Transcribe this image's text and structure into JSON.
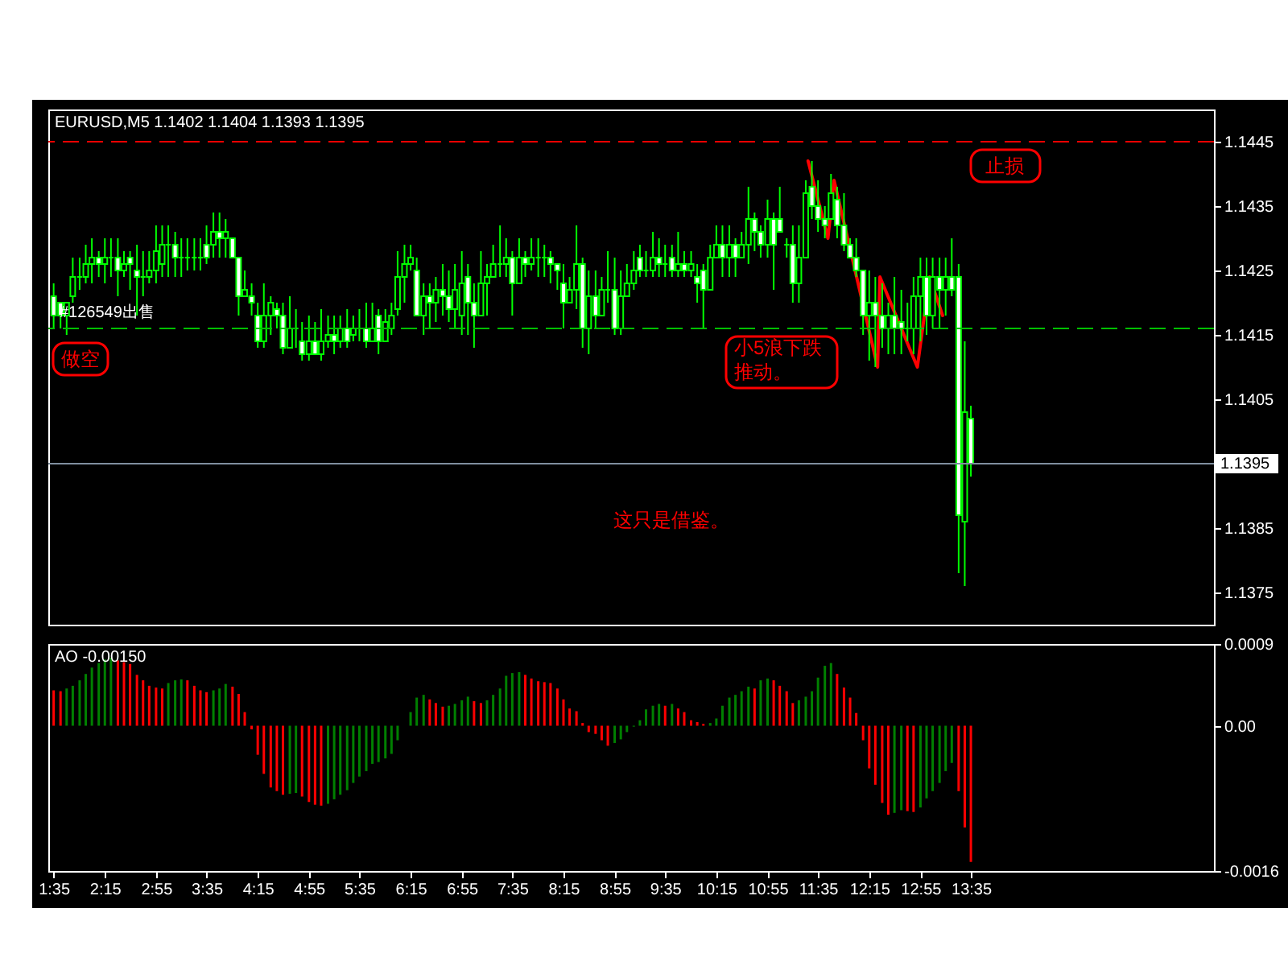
{
  "chart_data": [
    {
      "type": "candlestick",
      "title": "EURUSD,M5 1.1402 1.1404 1.1393 1.1395",
      "color": "#00ff00",
      "x": [
        1.58,
        1.67,
        1.75,
        1.83,
        1.92,
        2.0,
        2.08,
        2.17,
        2.25,
        2.33,
        2.42,
        2.5,
        2.58,
        2.67,
        2.75,
        2.83,
        2.92,
        3.0,
        3.08,
        3.17,
        3.25,
        3.33,
        3.42,
        3.5,
        3.58,
        3.67,
        3.75,
        3.83,
        3.92,
        4.0,
        4.08,
        4.17,
        4.25,
        4.33,
        4.42,
        4.5,
        4.58,
        4.67,
        4.75,
        4.83,
        4.92,
        5.0,
        5.08,
        5.17,
        5.25,
        5.33,
        5.42,
        5.5,
        5.58,
        5.67,
        5.75,
        5.83,
        5.92,
        6.0,
        6.08,
        6.17,
        6.25,
        6.33,
        6.42,
        6.5,
        6.58,
        6.67,
        6.75,
        6.83,
        6.92,
        7.0,
        7.08,
        7.17,
        7.25,
        7.33,
        7.42,
        7.5,
        7.58,
        7.67,
        7.75,
        7.83,
        7.92,
        8.0,
        8.08,
        8.17,
        8.25,
        8.33,
        8.42,
        8.5,
        8.58,
        8.67,
        8.75,
        8.83,
        8.92,
        9.0,
        9.08,
        9.17,
        9.25,
        9.33,
        9.42,
        9.5,
        9.58,
        9.67,
        9.75,
        9.83,
        9.92,
        10.0,
        10.08,
        10.17,
        10.25,
        10.33,
        10.42,
        10.5,
        10.58,
        10.67,
        10.75,
        10.83,
        10.92,
        11.0,
        11.08,
        11.17,
        11.25,
        11.33,
        11.42,
        11.5,
        11.58,
        11.67,
        11.75,
        11.83,
        11.92,
        12.0,
        12.08,
        12.17,
        12.25,
        12.33,
        12.42,
        12.5,
        12.58,
        12.67,
        12.75,
        12.83,
        12.92,
        13.0,
        13.08,
        13.17,
        13.25,
        13.33,
        13.42,
        13.5,
        13.58
      ],
      "ohlc": [
        [
          1.1421,
          1.1423,
          1.1416,
          1.1418
        ],
        [
          1.142,
          1.142,
          1.1416,
          1.1418
        ],
        [
          1.1418,
          1.142,
          1.1415,
          1.142
        ],
        [
          1.1421,
          1.1427,
          1.142,
          1.1424
        ],
        [
          1.1424,
          1.1427,
          1.1422,
          1.1424
        ],
        [
          1.1424,
          1.1429,
          1.1423,
          1.1426
        ],
        [
          1.1426,
          1.143,
          1.1423,
          1.1427
        ],
        [
          1.1427,
          1.1428,
          1.1424,
          1.1426
        ],
        [
          1.1426,
          1.143,
          1.1423,
          1.1427
        ],
        [
          1.1427,
          1.143,
          1.1424,
          1.1427
        ],
        [
          1.1427,
          1.143,
          1.1421,
          1.1425
        ],
        [
          1.1425,
          1.1428,
          1.1424,
          1.1426
        ],
        [
          1.1427,
          1.1428,
          1.1422,
          1.1426
        ],
        [
          1.1425,
          1.1429,
          1.1418,
          1.1424
        ],
        [
          1.1424,
          1.1428,
          1.1421,
          1.1424
        ],
        [
          1.1424,
          1.1428,
          1.1423,
          1.1425
        ],
        [
          1.1425,
          1.1432,
          1.1423,
          1.1428
        ],
        [
          1.1426,
          1.1432,
          1.1424,
          1.1429
        ],
        [
          1.1429,
          1.1432,
          1.1424,
          1.1429
        ],
        [
          1.1429,
          1.1431,
          1.1424,
          1.1427
        ],
        [
          1.1427,
          1.143,
          1.1424,
          1.1427
        ],
        [
          1.1427,
          1.143,
          1.1425,
          1.1427
        ],
        [
          1.1427,
          1.143,
          1.1425,
          1.1427
        ],
        [
          1.1427,
          1.143,
          1.1425,
          1.1427
        ],
        [
          1.1429,
          1.1432,
          1.1426,
          1.1427
        ],
        [
          1.1429,
          1.1434,
          1.1427,
          1.1431
        ],
        [
          1.1431,
          1.1434,
          1.1427,
          1.143
        ],
        [
          1.143,
          1.1433,
          1.1427,
          1.1431
        ],
        [
          1.143,
          1.143,
          1.1427,
          1.1427
        ],
        [
          1.1427,
          1.1427,
          1.1418,
          1.1421
        ],
        [
          1.1421,
          1.1425,
          1.1421,
          1.1422
        ],
        [
          1.1421,
          1.1423,
          1.1418,
          1.142
        ],
        [
          1.1418,
          1.142,
          1.1413,
          1.1414
        ],
        [
          1.1414,
          1.1423,
          1.1413,
          1.1418
        ],
        [
          1.1418,
          1.1421,
          1.1415,
          1.142
        ],
        [
          1.1419,
          1.142,
          1.1416,
          1.1418
        ],
        [
          1.1418,
          1.142,
          1.1412,
          1.1413
        ],
        [
          1.1413,
          1.1421,
          1.1413,
          1.1416
        ],
        [
          1.1416,
          1.1419,
          1.1413,
          1.1416
        ],
        [
          1.1414,
          1.1417,
          1.1411,
          1.1412
        ],
        [
          1.1412,
          1.1418,
          1.1411,
          1.1414
        ],
        [
          1.1414,
          1.1417,
          1.1412,
          1.1412
        ],
        [
          1.1412,
          1.1419,
          1.1411,
          1.1414
        ],
        [
          1.1414,
          1.1418,
          1.1413,
          1.1415
        ],
        [
          1.1415,
          1.1418,
          1.1412,
          1.1414
        ],
        [
          1.1414,
          1.1418,
          1.1413,
          1.1416
        ],
        [
          1.1416,
          1.1419,
          1.1413,
          1.1414
        ],
        [
          1.1415,
          1.1418,
          1.1414,
          1.1416
        ],
        [
          1.1416,
          1.1419,
          1.1414,
          1.1416
        ],
        [
          1.1416,
          1.142,
          1.1413,
          1.1414
        ],
        [
          1.1414,
          1.142,
          1.1414,
          1.1416
        ],
        [
          1.1418,
          1.1419,
          1.1412,
          1.1414
        ],
        [
          1.1414,
          1.1419,
          1.1414,
          1.1417
        ],
        [
          1.1416,
          1.142,
          1.1415,
          1.1418
        ],
        [
          1.1419,
          1.1428,
          1.1418,
          1.1424
        ],
        [
          1.1424,
          1.1429,
          1.142,
          1.1426
        ],
        [
          1.1426,
          1.1429,
          1.1425,
          1.1427
        ],
        [
          1.1425,
          1.1427,
          1.1418,
          1.1418
        ],
        [
          1.1418,
          1.1423,
          1.1415,
          1.1421
        ],
        [
          1.1421,
          1.1423,
          1.1416,
          1.142
        ],
        [
          1.142,
          1.1424,
          1.1417,
          1.1422
        ],
        [
          1.1422,
          1.1426,
          1.1418,
          1.1421
        ],
        [
          1.1421,
          1.1425,
          1.1417,
          1.1419
        ],
        [
          1.1419,
          1.1426,
          1.1416,
          1.1422
        ],
        [
          1.1418,
          1.1428,
          1.1415,
          1.1423
        ],
        [
          1.1424,
          1.1426,
          1.1415,
          1.142
        ],
        [
          1.142,
          1.1423,
          1.1413,
          1.1418
        ],
        [
          1.1418,
          1.1428,
          1.1418,
          1.1423
        ],
        [
          1.1423,
          1.1426,
          1.1418,
          1.1424
        ],
        [
          1.1424,
          1.1429,
          1.1424,
          1.1426
        ],
        [
          1.1426,
          1.1432,
          1.1424,
          1.1426
        ],
        [
          1.1426,
          1.143,
          1.1424,
          1.1427
        ],
        [
          1.1427,
          1.1428,
          1.1418,
          1.1423
        ],
        [
          1.1423,
          1.143,
          1.1423,
          1.1427
        ],
        [
          1.1427,
          1.1428,
          1.1424,
          1.1426
        ],
        [
          1.1426,
          1.143,
          1.1425,
          1.1427
        ],
        [
          1.1427,
          1.143,
          1.1424,
          1.1427
        ],
        [
          1.1427,
          1.1429,
          1.1424,
          1.1427
        ],
        [
          1.1427,
          1.1428,
          1.1423,
          1.1426
        ],
        [
          1.1426,
          1.1426,
          1.1422,
          1.1425
        ],
        [
          1.1423,
          1.1426,
          1.1416,
          1.142
        ],
        [
          1.142,
          1.1424,
          1.142,
          1.1422
        ],
        [
          1.1422,
          1.1432,
          1.1419,
          1.1426
        ],
        [
          1.1426,
          1.1427,
          1.1413,
          1.1416
        ],
        [
          1.1416,
          1.1425,
          1.1412,
          1.1421
        ],
        [
          1.1421,
          1.1425,
          1.1416,
          1.1418
        ],
        [
          1.1418,
          1.1424,
          1.1418,
          1.1422
        ],
        [
          1.1422,
          1.1428,
          1.142,
          1.1422
        ],
        [
          1.1422,
          1.1427,
          1.1415,
          1.1416
        ],
        [
          1.1416,
          1.1425,
          1.1415,
          1.1421
        ],
        [
          1.1421,
          1.1426,
          1.1421,
          1.1423
        ],
        [
          1.1423,
          1.1428,
          1.1422,
          1.1425
        ],
        [
          1.1427,
          1.1429,
          1.1424,
          1.1425
        ],
        [
          1.1425,
          1.1428,
          1.1424,
          1.1425
        ],
        [
          1.1425,
          1.1431,
          1.1424,
          1.1427
        ],
        [
          1.1427,
          1.143,
          1.1424,
          1.1426
        ],
        [
          1.1426,
          1.1429,
          1.1424,
          1.1426
        ],
        [
          1.1427,
          1.1429,
          1.1424,
          1.1425
        ],
        [
          1.1425,
          1.1431,
          1.1424,
          1.1426
        ],
        [
          1.1426,
          1.1428,
          1.1424,
          1.1425
        ],
        [
          1.1425,
          1.1428,
          1.1424,
          1.1426
        ],
        [
          1.1424,
          1.1426,
          1.142,
          1.1423
        ],
        [
          1.1425,
          1.1426,
          1.1416,
          1.1422
        ],
        [
          1.1422,
          1.1429,
          1.1422,
          1.1427
        ],
        [
          1.1427,
          1.1432,
          1.1427,
          1.1429
        ],
        [
          1.1429,
          1.1432,
          1.1424,
          1.1427
        ],
        [
          1.1427,
          1.1432,
          1.1424,
          1.1429
        ],
        [
          1.1429,
          1.143,
          1.1424,
          1.1427
        ],
        [
          1.1427,
          1.1431,
          1.1427,
          1.1429
        ],
        [
          1.1429,
          1.1438,
          1.1426,
          1.1433
        ],
        [
          1.1433,
          1.1434,
          1.1428,
          1.1431
        ],
        [
          1.1431,
          1.1432,
          1.1427,
          1.1429
        ],
        [
          1.1429,
          1.1436,
          1.1427,
          1.1433
        ],
        [
          1.1433,
          1.1434,
          1.1422,
          1.1429
        ],
        [
          1.1433,
          1.1438,
          1.1431,
          1.1431
        ],
        [
          1.1429,
          1.143,
          1.1427,
          1.1429
        ],
        [
          1.1429,
          1.1432,
          1.142,
          1.1423
        ],
        [
          1.1423,
          1.1432,
          1.142,
          1.1427
        ],
        [
          1.1427,
          1.1439,
          1.1427,
          1.1437
        ],
        [
          1.1438,
          1.1442,
          1.1433,
          1.1435
        ],
        [
          1.1435,
          1.1439,
          1.1431,
          1.1433
        ],
        [
          1.1433,
          1.1435,
          1.143,
          1.1432
        ],
        [
          1.1433,
          1.144,
          1.1433,
          1.1437
        ],
        [
          1.1436,
          1.1438,
          1.143,
          1.1432
        ],
        [
          1.1432,
          1.1437,
          1.1428,
          1.1429
        ],
        [
          1.1429,
          1.143,
          1.1427,
          1.1427
        ],
        [
          1.1427,
          1.143,
          1.1424,
          1.1425
        ],
        [
          1.1425,
          1.1425,
          1.1415,
          1.1418
        ],
        [
          1.1418,
          1.1425,
          1.1411,
          1.142
        ],
        [
          1.142,
          1.1424,
          1.141,
          1.1418
        ],
        [
          1.1418,
          1.1423,
          1.1413,
          1.1416
        ],
        [
          1.1416,
          1.142,
          1.1412,
          1.1418
        ],
        [
          1.1418,
          1.1424,
          1.1412,
          1.1416
        ],
        [
          1.1417,
          1.1422,
          1.1412,
          1.1416
        ],
        [
          1.1416,
          1.142,
          1.1414,
          1.1416
        ],
        [
          1.1416,
          1.1424,
          1.1412,
          1.1421
        ],
        [
          1.1421,
          1.1427,
          1.1414,
          1.1424
        ],
        [
          1.1424,
          1.1427,
          1.1415,
          1.1418
        ],
        [
          1.1418,
          1.1427,
          1.1416,
          1.1424
        ],
        [
          1.1424,
          1.1427,
          1.1416,
          1.1422
        ],
        [
          1.1422,
          1.1427,
          1.1418,
          1.1424
        ],
        [
          1.1424,
          1.143,
          1.1421,
          1.1422
        ],
        [
          1.1424,
          1.1426,
          1.1378,
          1.1387
        ],
        [
          1.1386,
          1.1414,
          1.1376,
          1.1403
        ],
        [
          1.1402,
          1.1404,
          1.1393,
          1.1395
        ]
      ],
      "series": [
        {
          "type": "line",
          "color": "#ff0000",
          "x": [
            11.45,
            11.71,
            11.79,
            12.36,
            12.39,
            12.88,
            13.04,
            13.21
          ],
          "values": [
            1.1442,
            1.143,
            1.1439,
            1.141,
            1.1424,
            1.141,
            1.1424,
            1.1418
          ]
        }
      ],
      "ref_lines": [
        {
          "axis": "y",
          "value": 1.1445,
          "label": "止损",
          "color": "#ff0000",
          "line_style": "dashed"
        },
        {
          "axis": "y",
          "value": 1.1416,
          "label": "#126549出售",
          "color": "#00c000",
          "line_style": "dashed"
        },
        {
          "axis": "y",
          "value": 1.1395,
          "label": "1.1395",
          "color": "#7f8f9f",
          "line_style": "solid"
        }
      ],
      "annotations": [
        "做空",
        "小5浪下跌推动。",
        "这只是借鉴。"
      ],
      "xlim": [
        1.51,
        16.76
      ],
      "ylim": [
        1.137,
        1.145
      ],
      "yticks": [
        1.1375,
        1.1385,
        1.1405,
        1.1415,
        1.1425,
        1.1435,
        1.1445
      ],
      "tick_labels": "y"
    },
    {
      "type": "bar",
      "title": "AO -0.00150",
      "x": [
        1.58,
        1.67,
        1.75,
        1.83,
        1.92,
        2.0,
        2.08,
        2.17,
        2.25,
        2.33,
        2.42,
        2.5,
        2.58,
        2.67,
        2.75,
        2.83,
        2.92,
        3.0,
        3.08,
        3.17,
        3.25,
        3.33,
        3.42,
        3.5,
        3.58,
        3.67,
        3.75,
        3.83,
        3.92,
        4.0,
        4.08,
        4.17,
        4.25,
        4.33,
        4.42,
        4.5,
        4.58,
        4.67,
        4.75,
        4.83,
        4.92,
        5.0,
        5.08,
        5.17,
        5.25,
        5.33,
        5.42,
        5.5,
        5.58,
        5.67,
        5.75,
        5.83,
        5.92,
        6.0,
        6.08,
        6.17,
        6.25,
        6.33,
        6.42,
        6.5,
        6.58,
        6.67,
        6.75,
        6.83,
        6.92,
        7.0,
        7.08,
        7.17,
        7.25,
        7.33,
        7.42,
        7.5,
        7.58,
        7.67,
        7.75,
        7.83,
        7.92,
        8.0,
        8.08,
        8.17,
        8.25,
        8.33,
        8.42,
        8.5,
        8.58,
        8.67,
        8.75,
        8.83,
        8.92,
        9.0,
        9.08,
        9.17,
        9.25,
        9.33,
        9.42,
        9.5,
        9.58,
        9.67,
        9.75,
        9.83,
        9.92,
        10.0,
        10.08,
        10.17,
        10.25,
        10.33,
        10.42,
        10.5,
        10.58,
        10.67,
        10.75,
        10.83,
        10.92,
        11.0,
        11.08,
        11.17,
        11.25,
        11.33,
        11.42,
        11.5,
        11.58,
        11.67,
        11.75,
        11.83,
        11.92,
        12.0,
        12.08,
        12.17,
        12.25,
        12.33,
        12.42,
        12.5,
        12.58,
        12.67,
        12.75,
        12.83,
        12.92,
        13.0,
        13.08,
        13.17,
        13.25,
        13.33,
        13.42,
        13.5,
        13.58
      ],
      "values": [
        0.00039,
        0.00038,
        0.00041,
        0.00044,
        0.0005,
        0.00057,
        0.00064,
        0.00069,
        0.00073,
        0.00075,
        0.00072,
        0.0007,
        0.00068,
        0.00056,
        0.0005,
        0.00044,
        0.00042,
        0.00041,
        0.00047,
        0.0005,
        0.00051,
        0.0005,
        0.00044,
        0.00039,
        0.00037,
        0.00039,
        0.00041,
        0.00046,
        0.00043,
        0.00035,
        0.00015,
        -4e-05,
        -0.00032,
        -0.00053,
        -0.00068,
        -0.00072,
        -0.00076,
        -0.00075,
        -0.00074,
        -0.00078,
        -0.00084,
        -0.00087,
        -0.00088,
        -0.00086,
        -0.00081,
        -0.00076,
        -0.00071,
        -0.00063,
        -0.00056,
        -0.0005,
        -0.00042,
        -0.0004,
        -0.00036,
        -0.00031,
        -0.00016,
        null,
        0.00015,
        0.00031,
        0.00034,
        0.00029,
        0.00025,
        0.00021,
        0.00022,
        0.00024,
        0.00028,
        0.00032,
        0.00027,
        0.00025,
        0.00028,
        0.00034,
        0.00041,
        0.00055,
        0.00058,
        0.00059,
        0.00056,
        0.00052,
        0.00049,
        0.00048,
        0.00047,
        0.00041,
        0.00029,
        0.00019,
        0.00016,
        3e-05,
        -7e-05,
        -9e-05,
        -0.00016,
        -0.00022,
        -0.00019,
        -0.00015,
        -7e-05,
        -1e-05,
        6e-05,
        0.00018,
        0.00022,
        0.00024,
        0.00022,
        0.00024,
        0.00019,
        0.00015,
        6e-05,
        4e-05,
        2e-05,
        3e-05,
        8e-05,
        0.00022,
        0.00031,
        0.00034,
        0.00038,
        0.00043,
        0.00041,
        0.0005,
        0.00052,
        0.0005,
        0.00044,
        0.00038,
        0.00025,
        0.00028,
        0.00032,
        0.00038,
        0.00053,
        0.00066,
        0.00069,
        0.00057,
        0.00042,
        0.00031,
        0.00014,
        -0.00016,
        -0.00047,
        -0.00065,
        -0.00085,
        -0.00098,
        -0.00096,
        -0.00093,
        -0.00094,
        -0.00095,
        -0.0009,
        -0.0008,
        -0.00072,
        -0.00063,
        -0.0005,
        -0.00041,
        -0.00072,
        -0.00112,
        -0.0015
      ],
      "colors": [
        "#ff0000",
        "#ff0000",
        "#008000",
        "#008000",
        "#008000",
        "#008000",
        "#008000",
        "#008000",
        "#008000",
        "#008000",
        "#ff0000",
        "#ff0000",
        "#ff0000",
        "#ff0000",
        "#ff0000",
        "#ff0000",
        "#ff0000",
        "#ff0000",
        "#008000",
        "#008000",
        "#008000",
        "#ff0000",
        "#ff0000",
        "#ff0000",
        "#ff0000",
        "#008000",
        "#008000",
        "#008000",
        "#ff0000",
        "#ff0000",
        "#ff0000",
        "#ff0000",
        "#ff0000",
        "#ff0000",
        "#ff0000",
        "#ff0000",
        "#ff0000",
        "#008000",
        "#008000",
        "#ff0000",
        "#ff0000",
        "#ff0000",
        "#ff0000",
        "#008000",
        "#008000",
        "#008000",
        "#008000",
        "#008000",
        "#008000",
        "#008000",
        "#008000",
        "#008000",
        "#008000",
        "#008000",
        "#008000",
        "#008000",
        "#008000",
        "#008000",
        "#008000",
        "#ff0000",
        "#ff0000",
        "#ff0000",
        "#008000",
        "#008000",
        "#008000",
        "#008000",
        "#ff0000",
        "#ff0000",
        "#008000",
        "#008000",
        "#008000",
        "#008000",
        "#008000",
        "#008000",
        "#ff0000",
        "#ff0000",
        "#ff0000",
        "#ff0000",
        "#ff0000",
        "#ff0000",
        "#ff0000",
        "#ff0000",
        "#ff0000",
        "#ff0000",
        "#ff0000",
        "#ff0000",
        "#ff0000",
        "#ff0000",
        "#008000",
        "#008000",
        "#008000",
        "#008000",
        "#008000",
        "#008000",
        "#008000",
        "#008000",
        "#ff0000",
        "#008000",
        "#ff0000",
        "#ff0000",
        "#ff0000",
        "#ff0000",
        "#ff0000",
        "#008000",
        "#008000",
        "#008000",
        "#008000",
        "#008000",
        "#008000",
        "#008000",
        "#ff0000",
        "#008000",
        "#008000",
        "#ff0000",
        "#ff0000",
        "#ff0000",
        "#ff0000",
        "#008000",
        "#008000",
        "#008000",
        "#008000",
        "#008000",
        "#008000",
        "#ff0000",
        "#ff0000",
        "#ff0000",
        "#ff0000",
        "#ff0000",
        "#ff0000",
        "#ff0000",
        "#ff0000",
        "#ff0000",
        "#008000",
        "#008000",
        "#ff0000",
        "#ff0000",
        "#008000",
        "#008000",
        "#008000",
        "#008000",
        "#008000",
        "#008000",
        "#ff0000",
        "#ff0000",
        "#ff0000"
      ],
      "xlim": [
        1.51,
        16.76
      ],
      "xticks": [
        {
          "value": 1.58,
          "label": "1:35"
        },
        {
          "value": 2.25,
          "label": "2:15"
        },
        {
          "value": 2.92,
          "label": "2:55"
        },
        {
          "value": 3.58,
          "label": "3:35"
        },
        {
          "value": 4.25,
          "label": "4:15"
        },
        {
          "value": 4.92,
          "label": "4:55"
        },
        {
          "value": 5.58,
          "label": "5:35"
        },
        {
          "value": 6.25,
          "label": "6:15"
        },
        {
          "value": 6.92,
          "label": "6:55"
        },
        {
          "value": 7.58,
          "label": "7:35"
        },
        {
          "value": 8.25,
          "label": "8:15"
        },
        {
          "value": 8.92,
          "label": "8:55"
        },
        {
          "value": 9.58,
          "label": "9:35"
        },
        {
          "value": 10.25,
          "label": "10:15"
        },
        {
          "value": 10.92,
          "label": "10:55"
        },
        {
          "value": 11.58,
          "label": "11:35"
        },
        {
          "value": 12.25,
          "label": "12:15"
        },
        {
          "value": 12.92,
          "label": "12:55"
        },
        {
          "value": 13.58,
          "label": "13:35"
        }
      ],
      "ylim": [
        -0.0016,
        0.0009
      ],
      "yticks": [
        0.0009,
        {
          "value": 0,
          "label": "0.00"
        },
        -0.0016
      ]
    }
  ]
}
